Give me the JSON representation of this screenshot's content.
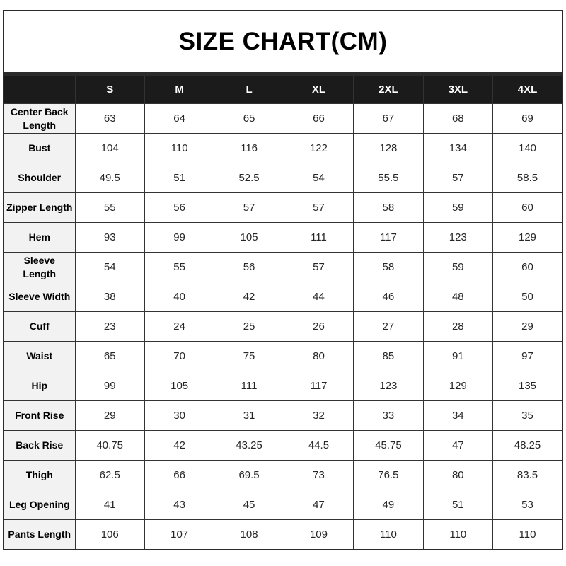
{
  "title": "SIZE CHART(CM)",
  "chart_data": {
    "type": "table",
    "title": "SIZE CHART(CM)",
    "unit": "cm",
    "corner_label": "",
    "columns": [
      "S",
      "M",
      "L",
      "XL",
      "2XL",
      "3XL",
      "4XL"
    ],
    "rows": [
      {
        "label": "Center Back\nLength",
        "values": [
          63,
          64,
          65,
          66,
          67,
          68,
          69
        ]
      },
      {
        "label": "Bust",
        "values": [
          104,
          110,
          116,
          122,
          128,
          134,
          140
        ]
      },
      {
        "label": "Shoulder",
        "values": [
          49.5,
          51,
          52.5,
          54,
          55.5,
          57,
          58.5
        ]
      },
      {
        "label": "Zipper Length",
        "values": [
          55,
          56,
          57,
          57,
          58,
          59,
          60
        ]
      },
      {
        "label": "Hem",
        "values": [
          93,
          99,
          105,
          111,
          117,
          123,
          129
        ]
      },
      {
        "label": "Sleeve\nLength",
        "values": [
          54,
          55,
          56,
          57,
          58,
          59,
          60
        ]
      },
      {
        "label": "Sleeve Width",
        "values": [
          38,
          40,
          42,
          44,
          46,
          48,
          50
        ]
      },
      {
        "label": "Cuff",
        "values": [
          23,
          24,
          25,
          26,
          27,
          28,
          29
        ]
      },
      {
        "label": "Waist",
        "values": [
          65,
          70,
          75,
          80,
          85,
          91,
          97
        ]
      },
      {
        "label": "Hip",
        "values": [
          99,
          105,
          111,
          117,
          123,
          129,
          135
        ]
      },
      {
        "label": "Front Rise",
        "values": [
          29,
          30,
          31,
          32,
          33,
          34,
          35
        ]
      },
      {
        "label": "Back Rise",
        "values": [
          40.75,
          42,
          43.25,
          44.5,
          45.75,
          47,
          48.25
        ]
      },
      {
        "label": "Thigh",
        "values": [
          62.5,
          66,
          69.5,
          73,
          76.5,
          80,
          83.5
        ]
      },
      {
        "label": "Leg Opening",
        "values": [
          41,
          43,
          45,
          47,
          49,
          51,
          53
        ]
      },
      {
        "label": "Pants Length",
        "values": [
          106,
          107,
          108,
          109,
          110,
          110,
          110
        ]
      }
    ]
  },
  "colors": {
    "header_bg": "#1b1b1b",
    "header_text": "#ffffff",
    "label_bg": "#f2f2f2",
    "border": "#333333",
    "text": "#262626"
  }
}
